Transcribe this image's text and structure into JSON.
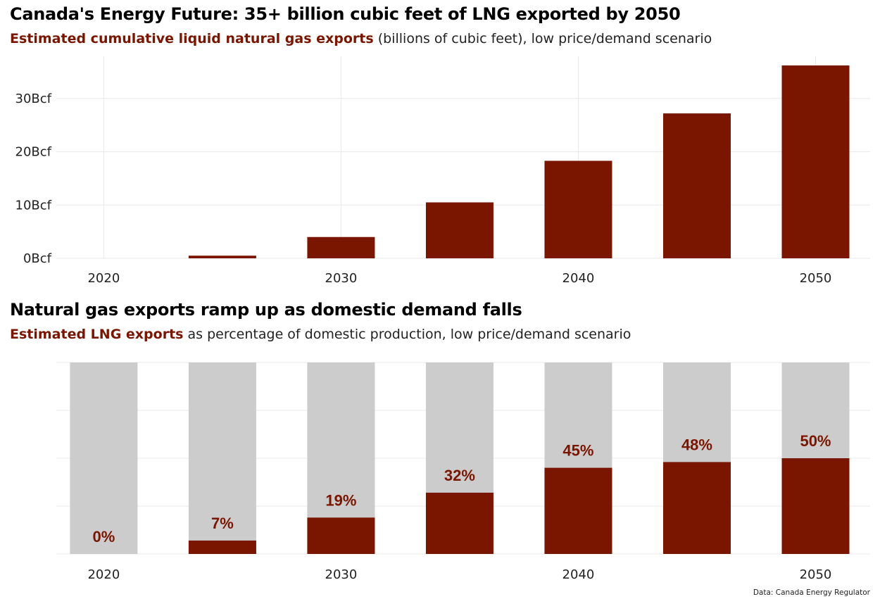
{
  "chart_data": [
    {
      "type": "bar",
      "title": "Canada's Energy Future: 35+ billion cubic feet of LNG exported by 2050",
      "subtitle_highlight": "Estimated cumulative liquid natural gas exports",
      "subtitle_rest": " (billions of cubic feet), low price/demand scenario",
      "x": [
        2020,
        2025,
        2030,
        2035,
        2040,
        2045,
        2050
      ],
      "values": [
        0,
        0.5,
        4,
        10.5,
        18.3,
        27.2,
        36.2
      ],
      "ylim": [
        0,
        38
      ],
      "yticks": [
        0,
        10,
        20,
        30
      ],
      "ytick_labels": [
        "0Bcf",
        "10Bcf",
        "20Bcf",
        "30Bcf"
      ],
      "xticks": [
        2020,
        2030,
        2040,
        2050
      ],
      "xtick_labels": [
        "2020",
        "2030",
        "2040",
        "2050"
      ],
      "bar_color": "#7a1500",
      "grid": true
    },
    {
      "type": "bar",
      "stacked": true,
      "title": "Natural gas exports ramp up as domestic demand falls",
      "subtitle_highlight": "Estimated LNG exports",
      "subtitle_rest": " as percentage of domestic production, low price/demand scenario",
      "x": [
        2020,
        2025,
        2030,
        2035,
        2040,
        2045,
        2050
      ],
      "values": [
        0,
        7,
        19,
        32,
        45,
        48,
        50
      ],
      "value_labels": [
        "0%",
        "7%",
        "19%",
        "32%",
        "45%",
        "48%",
        "50%"
      ],
      "total": 100,
      "xticks": [
        2020,
        2030,
        2040,
        2050
      ],
      "xtick_labels": [
        "2020",
        "2030",
        "2040",
        "2050"
      ],
      "bar_color": "#7a1500",
      "background_bar_color": "#cccccc",
      "grid": true
    }
  ],
  "source": "Data: Canada Energy Regulator"
}
